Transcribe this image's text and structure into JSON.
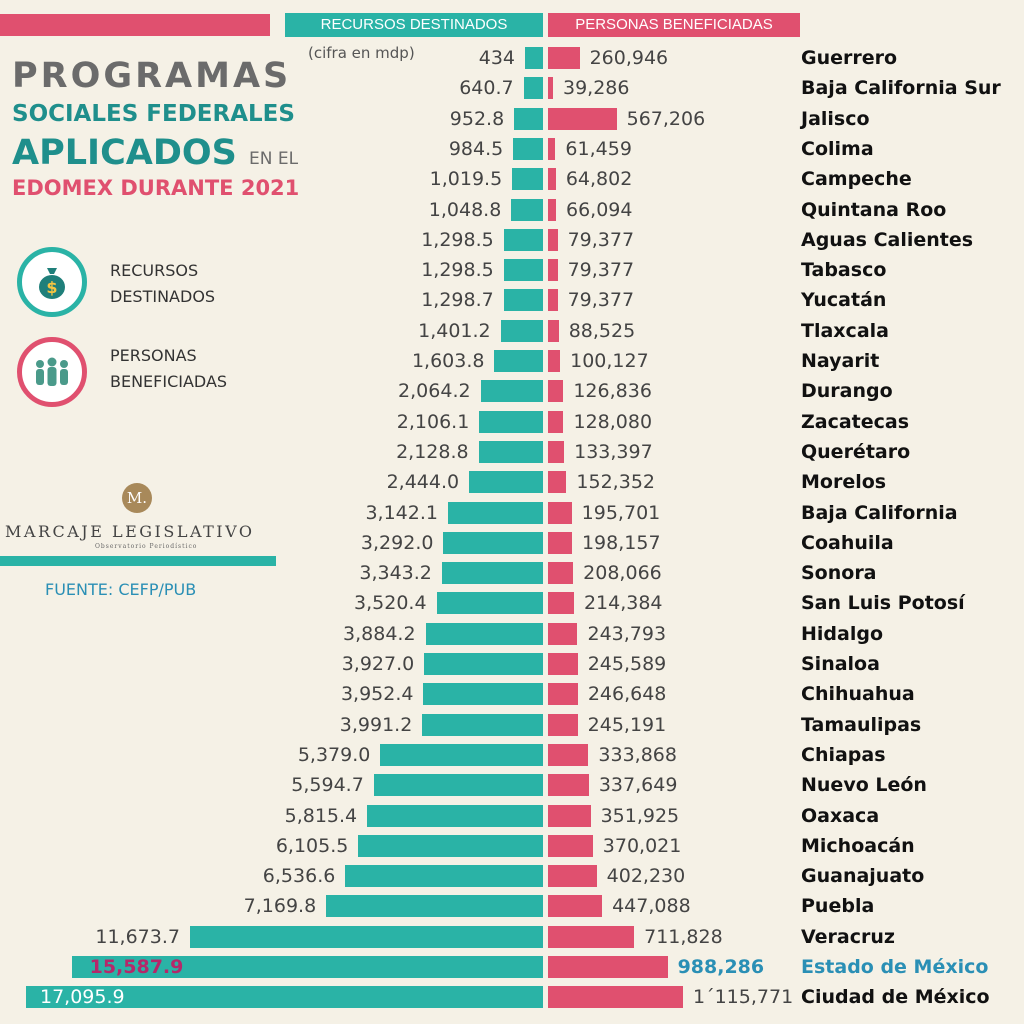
{
  "title": {
    "l1": "PROGRAMAS",
    "l2": "SOCIALES FEDERALES",
    "l3": "APLICADOS",
    "l3b": "EN EL",
    "l4": "EDOMEX DURANTE 2021"
  },
  "headers": {
    "left": "RECURSOS DESTINADOS",
    "right": "PERSONAS BENEFICIADAS",
    "unit": "(cifra en mdp)"
  },
  "legend": [
    {
      "label1": "RECURSOS",
      "label2": "DESTINADOS",
      "icon": "money-bag-icon",
      "color": "#2ab3a6"
    },
    {
      "label1": "PERSONAS",
      "label2": "BENEFICIADAS",
      "icon": "people-icon",
      "color": "#e0506f"
    }
  ],
  "logo": {
    "letter": "M.",
    "name": "MARCAJE LEGISLATIVO",
    "sub": "Observatorio Periodístico"
  },
  "source": "FUENTE: CEFP/PUB",
  "colors": {
    "teal": "#2ab3a6",
    "pink": "#e0506f",
    "highlight_left": "#b5286a",
    "highlight_right": "#2a8fb5"
  },
  "chart_data": {
    "type": "bar",
    "orientation": "horizontal-diverging",
    "categories": [
      "Guerrero",
      "Baja California Sur",
      "Jalisco",
      "Colima",
      "Campeche",
      "Quintana Roo",
      "Aguas Calientes",
      "Tabasco",
      "Yucatán",
      "Tlaxcala",
      "Nayarit",
      "Durango",
      "Zacatecas",
      "Querétaro",
      "Morelos",
      "Baja California",
      "Coahuila",
      "Sonora",
      "San Luis Potosí",
      "Hidalgo",
      "Sinaloa",
      "Chihuahua",
      "Tamaulipas",
      "Chiapas",
      "Nuevo León",
      "Oaxaca",
      "Michoacán",
      "Guanajuato",
      "Puebla",
      "Veracruz",
      "Estado de México",
      "Ciudad de México"
    ],
    "series": [
      {
        "name": "RECURSOS DESTINADOS",
        "values": [
          434,
          640.7,
          952.8,
          984.5,
          1019.5,
          1048.8,
          1298.5,
          1298.5,
          1298.7,
          1401.2,
          1603.8,
          2064.2,
          2106.1,
          2128.8,
          2444.0,
          3142.1,
          3292.0,
          3343.2,
          3520.4,
          3884.2,
          3927.0,
          3952.4,
          3991.2,
          5379.0,
          5594.7,
          5815.4,
          6105.5,
          6536.6,
          7169.8,
          11673.7,
          15587.9,
          17095.9
        ],
        "labels": [
          "434",
          "640.7",
          "952.8",
          "984.5",
          "1,019.5",
          "1,048.8",
          "1,298.5",
          "1,298.5",
          "1,298.7",
          "1,401.2",
          "1,603.8",
          "2,064.2",
          "2,106.1",
          "2,128.8",
          "2,444.0",
          "3,142.1",
          "3,292.0",
          "3,343.2",
          "3,520.4",
          "3,884.2",
          "3,927.0",
          "3,952.4",
          "3,991.2",
          "5,379.0",
          "5,594.7",
          "5,815.4",
          "6,105.5",
          "6,536.6",
          "7,169.8",
          "11,673.7",
          "15,587.9",
          "17,095.9"
        ]
      },
      {
        "name": "PERSONAS BENEFICIADAS",
        "values": [
          260946,
          39286,
          567206,
          61459,
          64802,
          66094,
          79377,
          79377,
          79377,
          88525,
          100127,
          126836,
          128080,
          133397,
          152352,
          195701,
          198157,
          208066,
          214384,
          243793,
          245589,
          246648,
          245191,
          333868,
          337649,
          351925,
          370021,
          402230,
          447088,
          711828,
          988286,
          1115771
        ],
        "labels": [
          "260,946",
          "39,286",
          "567,206",
          "61,459",
          "64,802",
          "66,094",
          "79,377",
          "79,377",
          "79,377",
          "88,525",
          "100,127",
          "126,836",
          "128,080",
          "133,397",
          "152,352",
          "195,701",
          "198,157",
          "208,066",
          "214,384",
          "243,793",
          "245,589",
          "246,648",
          "245,191",
          "333,868",
          "337,649",
          "351,925",
          "370,021",
          "402,230",
          "447,088",
          "711,828",
          "988,286",
          "1´115,771"
        ]
      }
    ],
    "highlight": "Estado de México"
  }
}
